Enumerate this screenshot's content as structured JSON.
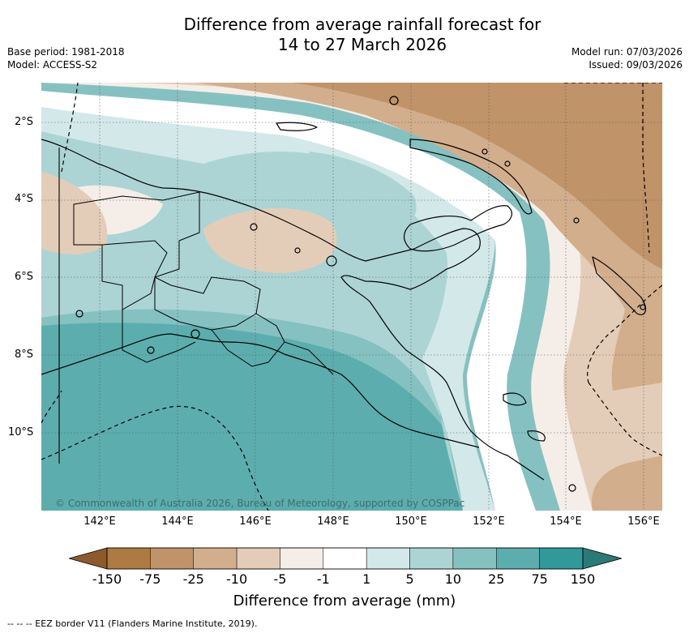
{
  "title": {
    "line1": "Difference from average rainfall forecast for",
    "line2": "14 to 27 March 2026"
  },
  "meta_left": {
    "base_period": "Base period: 1981-2018",
    "model": "Model: ACCESS-S2"
  },
  "meta_right": {
    "model_run": "Model run: 07/03/2026",
    "issued": "Issued: 09/03/2026"
  },
  "map": {
    "lat_ticks": [
      "2°S",
      "4°S",
      "6°S",
      "8°S",
      "10°S"
    ],
    "lon_ticks": [
      "142°E",
      "144°E",
      "146°E",
      "148°E",
      "150°E",
      "152°E",
      "154°E",
      "156°E"
    ],
    "copyright": "© Commonwealth of Australia 2026, Bureau of Meteorology, supported by COSPPac"
  },
  "colorbar": {
    "ticks": [
      "-150",
      "-75",
      "-25",
      "-10",
      "-5",
      "-1",
      "1",
      "5",
      "10",
      "25",
      "75",
      "150"
    ],
    "colors": [
      "#ad7a42",
      "#c09468",
      "#d2ae8c",
      "#e4cdb8",
      "#f5ede7",
      "#ffffff",
      "#d3e8e8",
      "#acd4d4",
      "#85c1c1",
      "#5caeae",
      "#31999a"
    ],
    "under_color": "#8c5a2c",
    "over_color": "#2a7a78",
    "label": "Difference from average (mm)"
  },
  "footnote": "--  --  -- EEZ border V11 (Flanders Marine Institute, 2019)."
}
